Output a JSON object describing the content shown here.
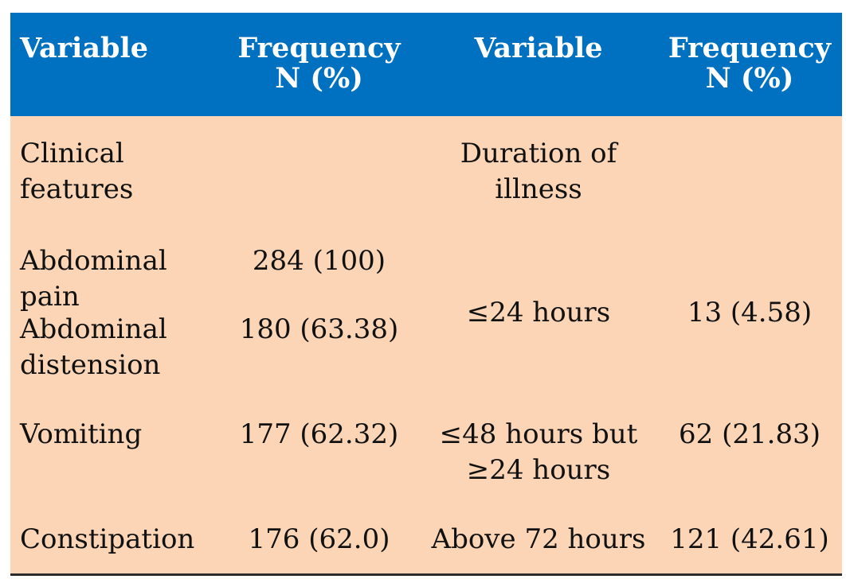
{
  "table": {
    "headers": [
      "Variable",
      "Frequency\nN (%)",
      "Variable",
      "Frequency\nN (%)"
    ],
    "rows": [
      [
        "Clinical\nfeatures",
        "",
        "Duration of\nillness",
        ""
      ],
      [
        "Abdominal\npain",
        "284 (100)",
        "≤24 hours",
        "13 (4.58)"
      ],
      [
        "Abdominal\ndistension",
        "180 (63.38)",
        "",
        ""
      ],
      [
        "Vomiting",
        "177 (62.32)",
        "≤48 hours but\n≥24 hours",
        "62 (21.83)"
      ],
      [
        "Constipation",
        "176 (62.0)",
        "Above 72 hours",
        "121 (42.61)"
      ]
    ]
  },
  "colors": {
    "header_bg": "#0070c0",
    "body_bg": "#fbd5b5",
    "header_text": "#ffffff"
  }
}
